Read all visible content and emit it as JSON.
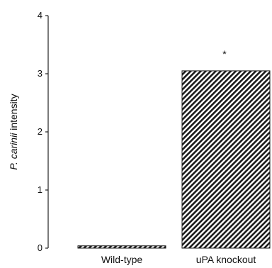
{
  "chart_data": {
    "type": "bar",
    "categories": [
      "Wild-type",
      "uPA knockout"
    ],
    "values": [
      0.04,
      3.05
    ],
    "ylabel_italic": "P. carinii",
    "ylabel_rest": " intensity",
    "ylim": [
      0,
      4
    ],
    "yticks": [
      "0",
      "1",
      "2",
      "3",
      "4"
    ],
    "annotations": [
      {
        "category": "uPA knockout",
        "text": "*"
      }
    ],
    "bar_fill": "diagonal-hatch",
    "colors": {
      "bar": "#1a1a1a",
      "axis": "#222222"
    }
  }
}
